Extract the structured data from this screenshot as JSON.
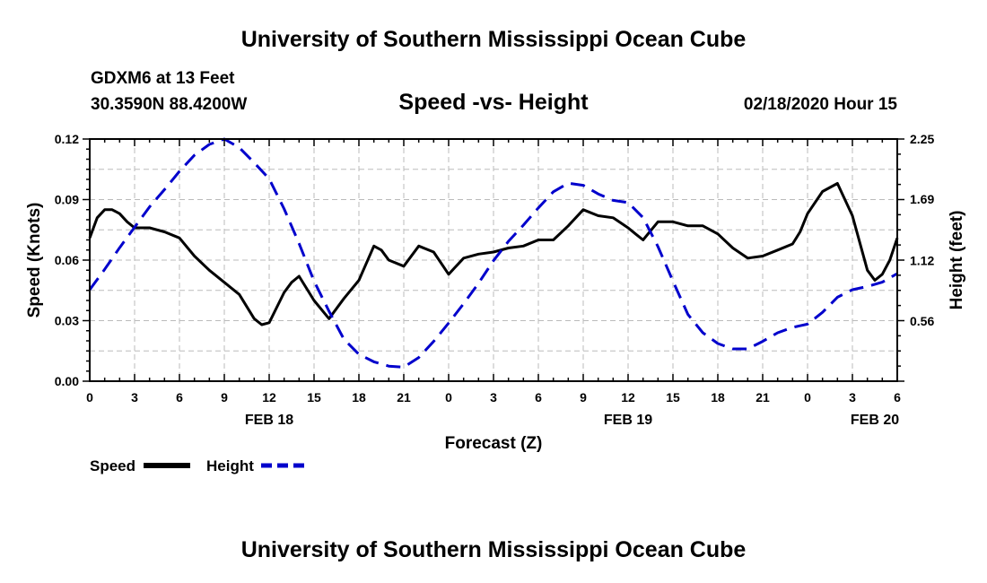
{
  "header": {
    "title": "University of Southern Mississippi Ocean Cube",
    "station": "GDXM6 at 13 Feet",
    "coordinates": "30.3590N 88.4200W",
    "subtitle": "Speed -vs- Height",
    "datetime": "02/18/2020 Hour 15"
  },
  "footer": {
    "title": "University of Southern Mississippi Ocean Cube"
  },
  "chart_data": {
    "type": "line",
    "title": "Speed -vs- Height",
    "xlabel": "Forecast (Z)",
    "ylabel_left": "Speed (Knots)",
    "ylabel_right": "Height (feet)",
    "xlim": [
      0,
      54
    ],
    "ylim_left": [
      0,
      0.12
    ],
    "ylim_right": [
      0,
      2.25
    ],
    "left_ticks": [
      "0.00",
      "0.03",
      "0.06",
      "0.09",
      "0.12"
    ],
    "right_ticks": [
      {
        "value": 0.56,
        "label": "0.56"
      },
      {
        "value": 1.12,
        "label": "1.12"
      },
      {
        "value": 1.69,
        "label": "1.69"
      },
      {
        "value": 2.25,
        "label": "2.25"
      }
    ],
    "x_tick_labels": [
      "0",
      "3",
      "6",
      "9",
      "12",
      "15",
      "18",
      "21",
      "0",
      "3",
      "6",
      "9",
      "12",
      "15",
      "18",
      "21",
      "0",
      "3",
      "6"
    ],
    "date_labels": [
      {
        "hour": 12,
        "label": "FEB 18"
      },
      {
        "hour": 36,
        "label": "FEB 19"
      },
      {
        "hour": 52.5,
        "label": "FEB 20"
      }
    ],
    "grid": true,
    "colors": {
      "speed": "#000000",
      "height": "#0000cc",
      "grid": "#bbbbbb"
    },
    "series": [
      {
        "name": "Speed",
        "axis": "left",
        "style": "solid",
        "x": [
          0,
          0.5,
          1,
          1.5,
          2,
          2.5,
          3,
          3.5,
          4,
          5,
          6,
          7,
          8,
          9,
          10,
          11,
          11.5,
          12,
          13,
          13.5,
          14,
          15,
          16,
          17,
          18,
          19,
          19.5,
          20,
          21,
          22,
          23,
          24,
          25,
          26,
          27,
          28,
          29,
          30,
          31,
          32,
          33,
          34,
          35,
          36,
          36.5,
          37,
          38,
          39,
          40,
          40.5,
          41,
          42,
          43,
          44,
          45,
          46,
          47,
          47.5,
          48,
          49,
          50,
          51,
          52,
          52.5,
          53,
          53.5,
          54
        ],
        "values": [
          0.071,
          0.081,
          0.085,
          0.085,
          0.083,
          0.079,
          0.076,
          0.076,
          0.076,
          0.074,
          0.071,
          0.062,
          0.055,
          0.049,
          0.043,
          0.031,
          0.028,
          0.029,
          0.044,
          0.049,
          0.052,
          0.04,
          0.031,
          0.041,
          0.05,
          0.067,
          0.065,
          0.06,
          0.057,
          0.067,
          0.064,
          0.053,
          0.061,
          0.063,
          0.064,
          0.066,
          0.067,
          0.07,
          0.07,
          0.077,
          0.085,
          0.082,
          0.081,
          0.076,
          0.073,
          0.07,
          0.079,
          0.079,
          0.077,
          0.077,
          0.077,
          0.073,
          0.066,
          0.061,
          0.062,
          0.065,
          0.068,
          0.074,
          0.083,
          0.094,
          0.098,
          0.082,
          0.055,
          0.05,
          0.053,
          0.06,
          0.071
        ]
      },
      {
        "name": "Height",
        "axis": "right",
        "style": "dashed",
        "x": [
          0,
          1,
          2,
          3,
          4,
          5,
          6,
          7,
          8,
          9,
          10,
          11,
          12,
          13,
          14,
          15,
          16,
          17,
          18,
          19,
          20,
          21,
          22,
          23,
          24,
          25,
          26,
          27,
          28,
          29,
          30,
          31,
          32,
          33,
          34,
          35,
          36,
          37,
          38,
          39,
          40,
          41,
          42,
          43,
          44,
          45,
          46,
          47,
          48,
          49,
          50,
          51,
          52,
          53,
          54
        ],
        "values": [
          0.85,
          1.04,
          1.24,
          1.43,
          1.62,
          1.78,
          1.95,
          2.1,
          2.2,
          2.25,
          2.17,
          2.03,
          1.88,
          1.6,
          1.28,
          0.93,
          0.65,
          0.39,
          0.25,
          0.18,
          0.14,
          0.13,
          0.22,
          0.37,
          0.54,
          0.72,
          0.91,
          1.12,
          1.3,
          1.45,
          1.61,
          1.76,
          1.84,
          1.82,
          1.74,
          1.68,
          1.66,
          1.52,
          1.25,
          0.93,
          0.62,
          0.45,
          0.35,
          0.3,
          0.3,
          0.37,
          0.45,
          0.5,
          0.53,
          0.64,
          0.78,
          0.85,
          0.88,
          0.92,
          1.0
        ]
      }
    ]
  },
  "legend": {
    "items": [
      {
        "label": "Speed",
        "color": "#000000",
        "style": "solid"
      },
      {
        "label": "Height",
        "color": "#0000cc",
        "style": "dashed"
      }
    ]
  }
}
